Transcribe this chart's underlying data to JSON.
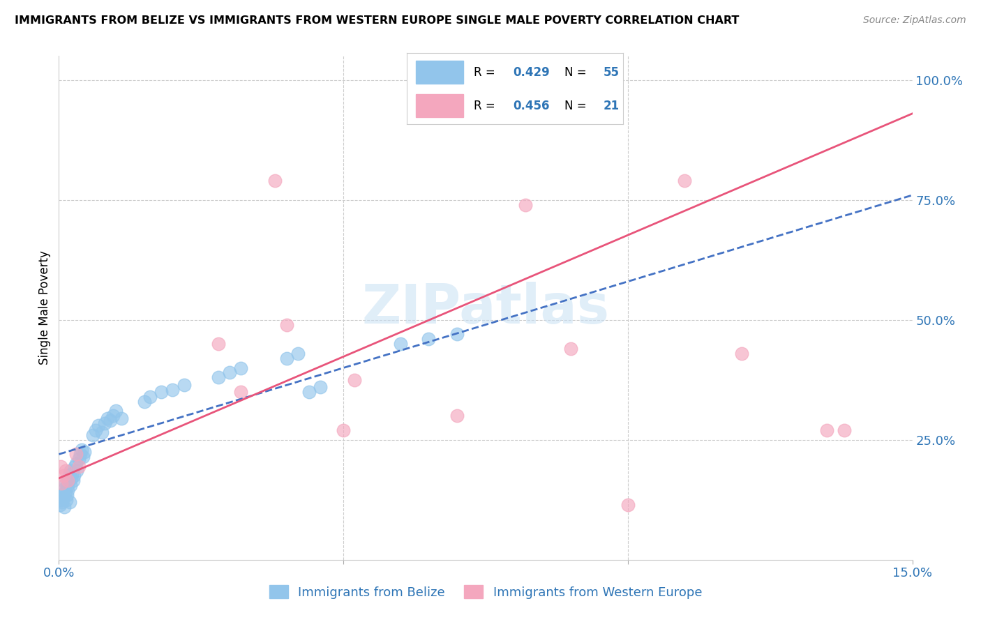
{
  "title": "IMMIGRANTS FROM BELIZE VS IMMIGRANTS FROM WESTERN EUROPE SINGLE MALE POVERTY CORRELATION CHART",
  "source": "Source: ZipAtlas.com",
  "ylabel": "Single Male Poverty",
  "belize_color": "#92C5EB",
  "belize_edge_color": "#92C5EB",
  "western_europe_color": "#F4A7BE",
  "western_europe_edge_color": "#F4A7BE",
  "belize_line_color": "#4472C4",
  "western_europe_line_color": "#E8547A",
  "R_belize": 0.429,
  "N_belize": 55,
  "R_western": 0.456,
  "N_western": 21,
  "legend_label_belize": "Immigrants from Belize",
  "legend_label_western": "Immigrants from Western Europe",
  "watermark": "ZIPatlas",
  "background_color": "#FFFFFF",
  "xlim": [
    0.0,
    0.15
  ],
  "ylim": [
    0.0,
    1.05
  ],
  "belize_x": [
    0.0002,
    0.0003,
    0.0005,
    0.0006,
    0.0008,
    0.0009,
    0.001,
    0.0011,
    0.0012,
    0.0013,
    0.0014,
    0.0015,
    0.0016,
    0.0017,
    0.0018,
    0.0019,
    0.002,
    0.0021,
    0.0022,
    0.0023,
    0.0025,
    0.0026,
    0.0028,
    0.003,
    0.0032,
    0.0035,
    0.0038,
    0.004,
    0.0042,
    0.0045,
    0.006,
    0.0065,
    0.007,
    0.0075,
    0.008,
    0.0085,
    0.009,
    0.0095,
    0.01,
    0.011,
    0.015,
    0.016,
    0.018,
    0.02,
    0.022,
    0.028,
    0.03,
    0.032,
    0.04,
    0.042,
    0.044,
    0.046,
    0.06,
    0.065,
    0.07
  ],
  "belize_y": [
    0.115,
    0.125,
    0.135,
    0.12,
    0.13,
    0.11,
    0.14,
    0.15,
    0.16,
    0.125,
    0.135,
    0.155,
    0.145,
    0.165,
    0.175,
    0.12,
    0.185,
    0.155,
    0.17,
    0.18,
    0.165,
    0.175,
    0.195,
    0.2,
    0.185,
    0.21,
    0.22,
    0.23,
    0.215,
    0.225,
    0.26,
    0.27,
    0.28,
    0.265,
    0.285,
    0.295,
    0.29,
    0.3,
    0.31,
    0.295,
    0.33,
    0.34,
    0.35,
    0.355,
    0.365,
    0.38,
    0.39,
    0.4,
    0.42,
    0.43,
    0.35,
    0.36,
    0.45,
    0.46,
    0.47
  ],
  "western_x": [
    0.0003,
    0.0005,
    0.0008,
    0.0012,
    0.0015,
    0.003,
    0.0035,
    0.028,
    0.032,
    0.038,
    0.04,
    0.05,
    0.052,
    0.07,
    0.082,
    0.09,
    0.1,
    0.11,
    0.12,
    0.135,
    0.138
  ],
  "western_y": [
    0.195,
    0.16,
    0.175,
    0.185,
    0.165,
    0.22,
    0.195,
    0.45,
    0.35,
    0.79,
    0.49,
    0.27,
    0.375,
    0.3,
    0.74,
    0.44,
    0.115,
    0.79,
    0.43,
    0.27,
    0.27
  ],
  "belize_line_x": [
    0.0,
    0.15
  ],
  "belize_line_y": [
    0.22,
    0.76
  ],
  "western_line_x": [
    0.0,
    0.15
  ],
  "western_line_y": [
    0.17,
    0.93
  ]
}
